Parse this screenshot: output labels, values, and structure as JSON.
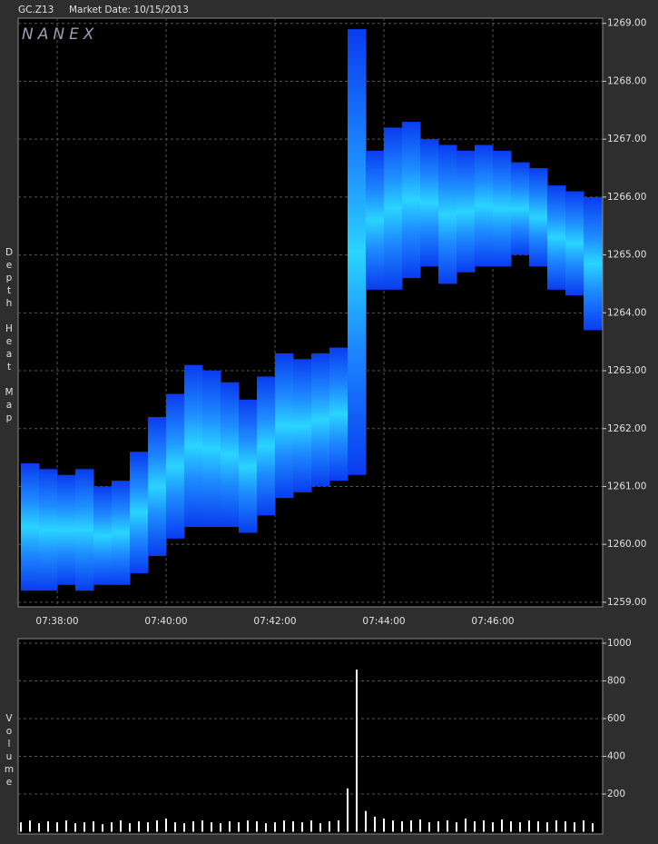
{
  "chart_data": [
    {
      "type": "heatmap",
      "symbol": "GC.Z13",
      "subtitle": "Market Date: 10/15/2013",
      "watermark": "NANEX",
      "ylabel": "Depth Heat Map",
      "xlim": [
        27437,
        28081
      ],
      "xticks": [
        {
          "value": 27480,
          "label": "07:38:00"
        },
        {
          "value": 27600,
          "label": "07:40:00"
        },
        {
          "value": 27720,
          "label": "07:42:00"
        },
        {
          "value": 27840,
          "label": "07:44:00"
        },
        {
          "value": 27960,
          "label": "07:46:00"
        }
      ],
      "ylim": [
        1258.92,
        1269.09
      ],
      "yticks": [
        {
          "value": 1259,
          "label": "1259.00"
        },
        {
          "value": 1260,
          "label": "1260.00"
        },
        {
          "value": 1261,
          "label": "1261.00"
        },
        {
          "value": 1262,
          "label": "1262.00"
        },
        {
          "value": 1263,
          "label": "1263.00"
        },
        {
          "value": 1264,
          "label": "1264.00"
        },
        {
          "value": 1265,
          "label": "1265.00"
        },
        {
          "value": 1266,
          "label": "1266.00"
        },
        {
          "value": 1267,
          "label": "1267.00"
        },
        {
          "value": 1268,
          "label": "1268.00"
        },
        {
          "value": 1269,
          "label": "1269.00"
        }
      ],
      "grid": true,
      "colors": [
        "#0a3cf0",
        "#1e8cff",
        "#2ad4ff"
      ],
      "x": [
        27440,
        27460,
        27480,
        27500,
        27520,
        27540,
        27560,
        27580,
        27600,
        27620,
        27640,
        27660,
        27680,
        27700,
        27720,
        27740,
        27760,
        27780,
        27800,
        27820,
        27840,
        27860,
        27880,
        27900,
        27920,
        27940,
        27960,
        27980,
        28000,
        28020,
        28040,
        28060
      ],
      "low": [
        1259.2,
        1259.2,
        1259.3,
        1259.2,
        1259.3,
        1259.3,
        1259.5,
        1259.8,
        1260.1,
        1260.3,
        1260.3,
        1260.3,
        1260.2,
        1260.5,
        1260.8,
        1260.9,
        1261.0,
        1261.1,
        1261.2,
        1264.4,
        1264.4,
        1264.6,
        1264.8,
        1264.5,
        1264.7,
        1264.8,
        1264.8,
        1265.0,
        1264.8,
        1264.4,
        1264.3,
        1263.7
      ],
      "high": [
        1261.4,
        1261.3,
        1261.2,
        1261.3,
        1261.0,
        1261.1,
        1261.6,
        1262.2,
        1262.6,
        1263.1,
        1263.0,
        1262.8,
        1262.5,
        1262.9,
        1263.3,
        1263.2,
        1263.3,
        1263.4,
        1268.9,
        1266.8,
        1267.2,
        1267.3,
        1267.0,
        1266.9,
        1266.8,
        1266.9,
        1266.8,
        1266.6,
        1266.5,
        1266.2,
        1266.1,
        1266.0
      ]
    },
    {
      "type": "bar",
      "ylabel": "Volume",
      "color": "#ffffff",
      "xlim": [
        27437,
        28081
      ],
      "ylim": [
        -12,
        1024
      ],
      "yticks": [
        200,
        400,
        600,
        800,
        1000
      ],
      "grid": true,
      "x": [
        27440,
        27450,
        27460,
        27470,
        27480,
        27490,
        27500,
        27510,
        27520,
        27530,
        27540,
        27550,
        27560,
        27570,
        27580,
        27590,
        27600,
        27610,
        27620,
        27630,
        27640,
        27650,
        27660,
        27670,
        27680,
        27690,
        27700,
        27710,
        27720,
        27730,
        27740,
        27750,
        27760,
        27770,
        27780,
        27790,
        27800,
        27810,
        27820,
        27830,
        27840,
        27850,
        27860,
        27870,
        27880,
        27890,
        27900,
        27910,
        27920,
        27930,
        27940,
        27950,
        27960,
        27970,
        27980,
        27990,
        28000,
        28010,
        28020,
        28030,
        28040,
        28050,
        28060,
        28070
      ],
      "values": [
        50,
        60,
        45,
        55,
        50,
        60,
        45,
        50,
        55,
        40,
        50,
        60,
        45,
        55,
        50,
        60,
        70,
        50,
        45,
        55,
        60,
        50,
        45,
        55,
        50,
        60,
        55,
        45,
        50,
        60,
        55,
        50,
        60,
        45,
        55,
        60,
        230,
        860,
        110,
        80,
        70,
        60,
        55,
        60,
        65,
        50,
        55,
        60,
        50,
        70,
        55,
        60,
        50,
        65,
        55,
        50,
        60,
        55,
        50,
        60,
        55,
        50,
        60,
        45
      ]
    }
  ]
}
